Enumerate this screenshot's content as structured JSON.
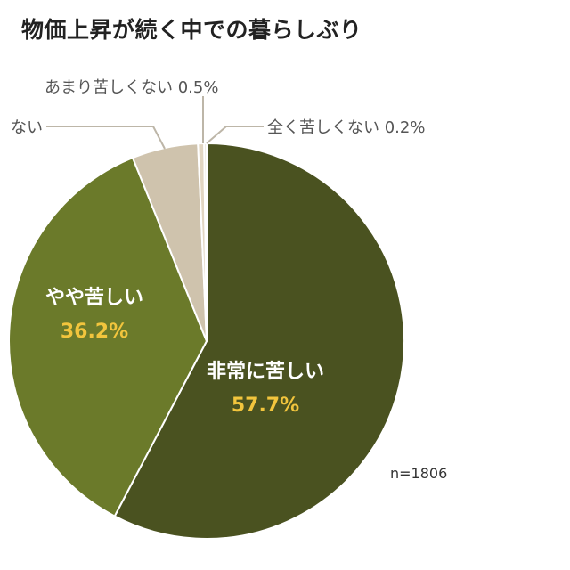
{
  "chart_data": {
    "type": "pie",
    "title": "物価上昇が続く中での暮らしぶり",
    "note": "n=1806",
    "slices": [
      {
        "label": "非常に苦しい",
        "percent_label": "57.7%",
        "value": 57.7,
        "color": "#4a5220"
      },
      {
        "label": "やや苦しい",
        "percent_label": "36.2%",
        "value": 36.2,
        "color": "#6b7a2a"
      },
      {
        "label": "ない",
        "percent_label": "",
        "value": 5.4,
        "color": "#cfc3ad"
      },
      {
        "label": "あまり苦しくない 0.5%",
        "percent_label": "",
        "value": 0.5,
        "color": "#e2d6c2"
      },
      {
        "label": "全く苦しくない 0.2%",
        "percent_label": "",
        "value": 0.2,
        "color": "#ece6da"
      }
    ],
    "label_colors": {
      "inside_label": "#ffffff",
      "inside_percent": "#f2c53d",
      "outside_label": "#555555",
      "leader_line": "#bdb6a8"
    }
  }
}
